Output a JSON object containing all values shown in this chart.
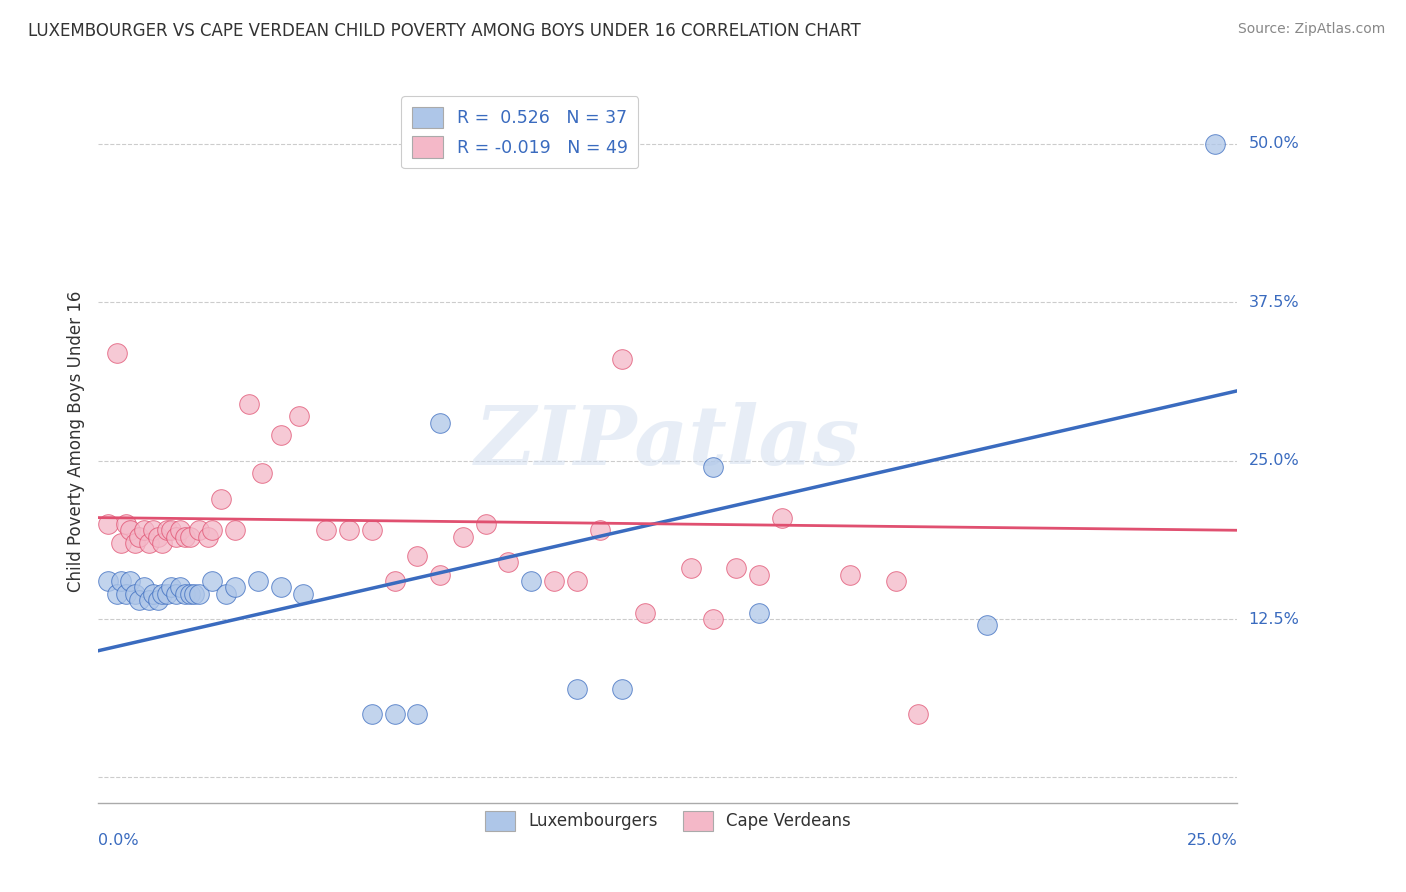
{
  "title": "LUXEMBOURGER VS CAPE VERDEAN CHILD POVERTY AMONG BOYS UNDER 16 CORRELATION CHART",
  "source": "Source: ZipAtlas.com",
  "ylabel": "Child Poverty Among Boys Under 16",
  "watermark": "ZIPatlas",
  "blue_R": "0.526",
  "blue_N": "37",
  "pink_R": "-0.019",
  "pink_N": "49",
  "blue_color": "#aec6e8",
  "pink_color": "#f4b8c8",
  "blue_line_color": "#3a6bbf",
  "pink_line_color": "#e05070",
  "legend_blue_label": "Luxembourgers",
  "legend_pink_label": "Cape Verdeans",
  "xlim": [
    0.0,
    0.25
  ],
  "ylim": [
    -0.02,
    0.55
  ],
  "ytick_positions": [
    0.0,
    0.125,
    0.25,
    0.375,
    0.5
  ],
  "ytick_labels": [
    "",
    "12.5%",
    "25.0%",
    "37.5%",
    "50.0%"
  ],
  "blue_trend_x0": 0.0,
  "blue_trend_y0": 0.1,
  "blue_trend_x1": 0.25,
  "blue_trend_y1": 0.305,
  "pink_trend_x0": 0.0,
  "pink_trend_y0": 0.205,
  "pink_trend_x1": 0.25,
  "pink_trend_y1": 0.195,
  "blue_scatter_x": [
    0.002,
    0.004,
    0.005,
    0.006,
    0.007,
    0.008,
    0.009,
    0.01,
    0.011,
    0.012,
    0.013,
    0.014,
    0.015,
    0.016,
    0.017,
    0.018,
    0.019,
    0.02,
    0.021,
    0.022,
    0.025,
    0.028,
    0.03,
    0.035,
    0.04,
    0.045,
    0.06,
    0.065,
    0.07,
    0.075,
    0.095,
    0.105,
    0.115,
    0.135,
    0.145,
    0.195,
    0.245
  ],
  "blue_scatter_y": [
    0.155,
    0.145,
    0.155,
    0.145,
    0.155,
    0.145,
    0.14,
    0.15,
    0.14,
    0.145,
    0.14,
    0.145,
    0.145,
    0.15,
    0.145,
    0.15,
    0.145,
    0.145,
    0.145,
    0.145,
    0.155,
    0.145,
    0.15,
    0.155,
    0.15,
    0.145,
    0.05,
    0.05,
    0.05,
    0.28,
    0.155,
    0.07,
    0.07,
    0.245,
    0.13,
    0.12,
    0.5
  ],
  "pink_scatter_x": [
    0.002,
    0.004,
    0.005,
    0.006,
    0.007,
    0.008,
    0.009,
    0.01,
    0.011,
    0.012,
    0.013,
    0.014,
    0.015,
    0.016,
    0.017,
    0.018,
    0.019,
    0.02,
    0.022,
    0.024,
    0.025,
    0.027,
    0.03,
    0.033,
    0.036,
    0.04,
    0.044,
    0.05,
    0.055,
    0.06,
    0.065,
    0.07,
    0.075,
    0.08,
    0.085,
    0.09,
    0.1,
    0.105,
    0.11,
    0.115,
    0.12,
    0.13,
    0.135,
    0.14,
    0.145,
    0.15,
    0.165,
    0.175,
    0.18
  ],
  "pink_scatter_y": [
    0.2,
    0.335,
    0.185,
    0.2,
    0.195,
    0.185,
    0.19,
    0.195,
    0.185,
    0.195,
    0.19,
    0.185,
    0.195,
    0.195,
    0.19,
    0.195,
    0.19,
    0.19,
    0.195,
    0.19,
    0.195,
    0.22,
    0.195,
    0.295,
    0.24,
    0.27,
    0.285,
    0.195,
    0.195,
    0.195,
    0.155,
    0.175,
    0.16,
    0.19,
    0.2,
    0.17,
    0.155,
    0.155,
    0.195,
    0.33,
    0.13,
    0.165,
    0.125,
    0.165,
    0.16,
    0.205,
    0.16,
    0.155,
    0.05
  ],
  "background_color": "#ffffff",
  "grid_color": "#cccccc"
}
